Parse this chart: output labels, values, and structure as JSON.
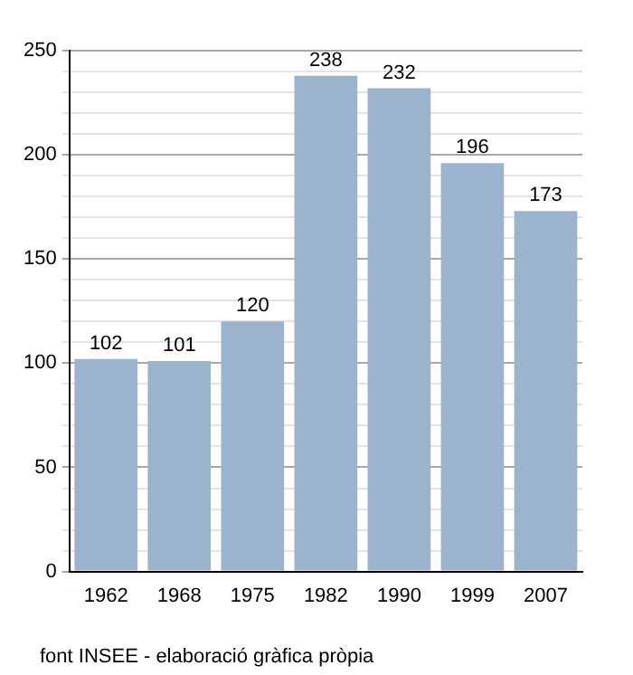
{
  "chart_data": {
    "type": "bar",
    "categories": [
      "1962",
      "1968",
      "1975",
      "1982",
      "1990",
      "1999",
      "2007"
    ],
    "values": [
      102,
      101,
      120,
      238,
      232,
      196,
      173
    ],
    "color": "#9bb3cc",
    "data_labels": true,
    "grid": "y",
    "legend": false,
    "ylim": [
      0,
      250
    ],
    "yticks": [
      0,
      {
        "value": 10,
        "label": null
      },
      {
        "value": 20,
        "label": null
      },
      {
        "value": 30,
        "label": null
      },
      {
        "value": 40,
        "label": null
      },
      50,
      {
        "value": 60,
        "label": null
      },
      {
        "value": 70,
        "label": null
      },
      {
        "value": 80,
        "label": null
      },
      {
        "value": 90,
        "label": null
      },
      100,
      {
        "value": 110,
        "label": null
      },
      {
        "value": 120,
        "label": null
      },
      {
        "value": 130,
        "label": null
      },
      {
        "value": 140,
        "label": null
      },
      150,
      {
        "value": 160,
        "label": null
      },
      {
        "value": 170,
        "label": null
      },
      {
        "value": 180,
        "label": null
      },
      {
        "value": 190,
        "label": null
      },
      200,
      {
        "value": 210,
        "label": null
      },
      {
        "value": 220,
        "label": null
      },
      {
        "value": 230,
        "label": null
      },
      {
        "value": 240,
        "label": null
      },
      250
    ],
    "annotations": [
      "font INSEE - elaboració gràfica pròpia"
    ]
  }
}
